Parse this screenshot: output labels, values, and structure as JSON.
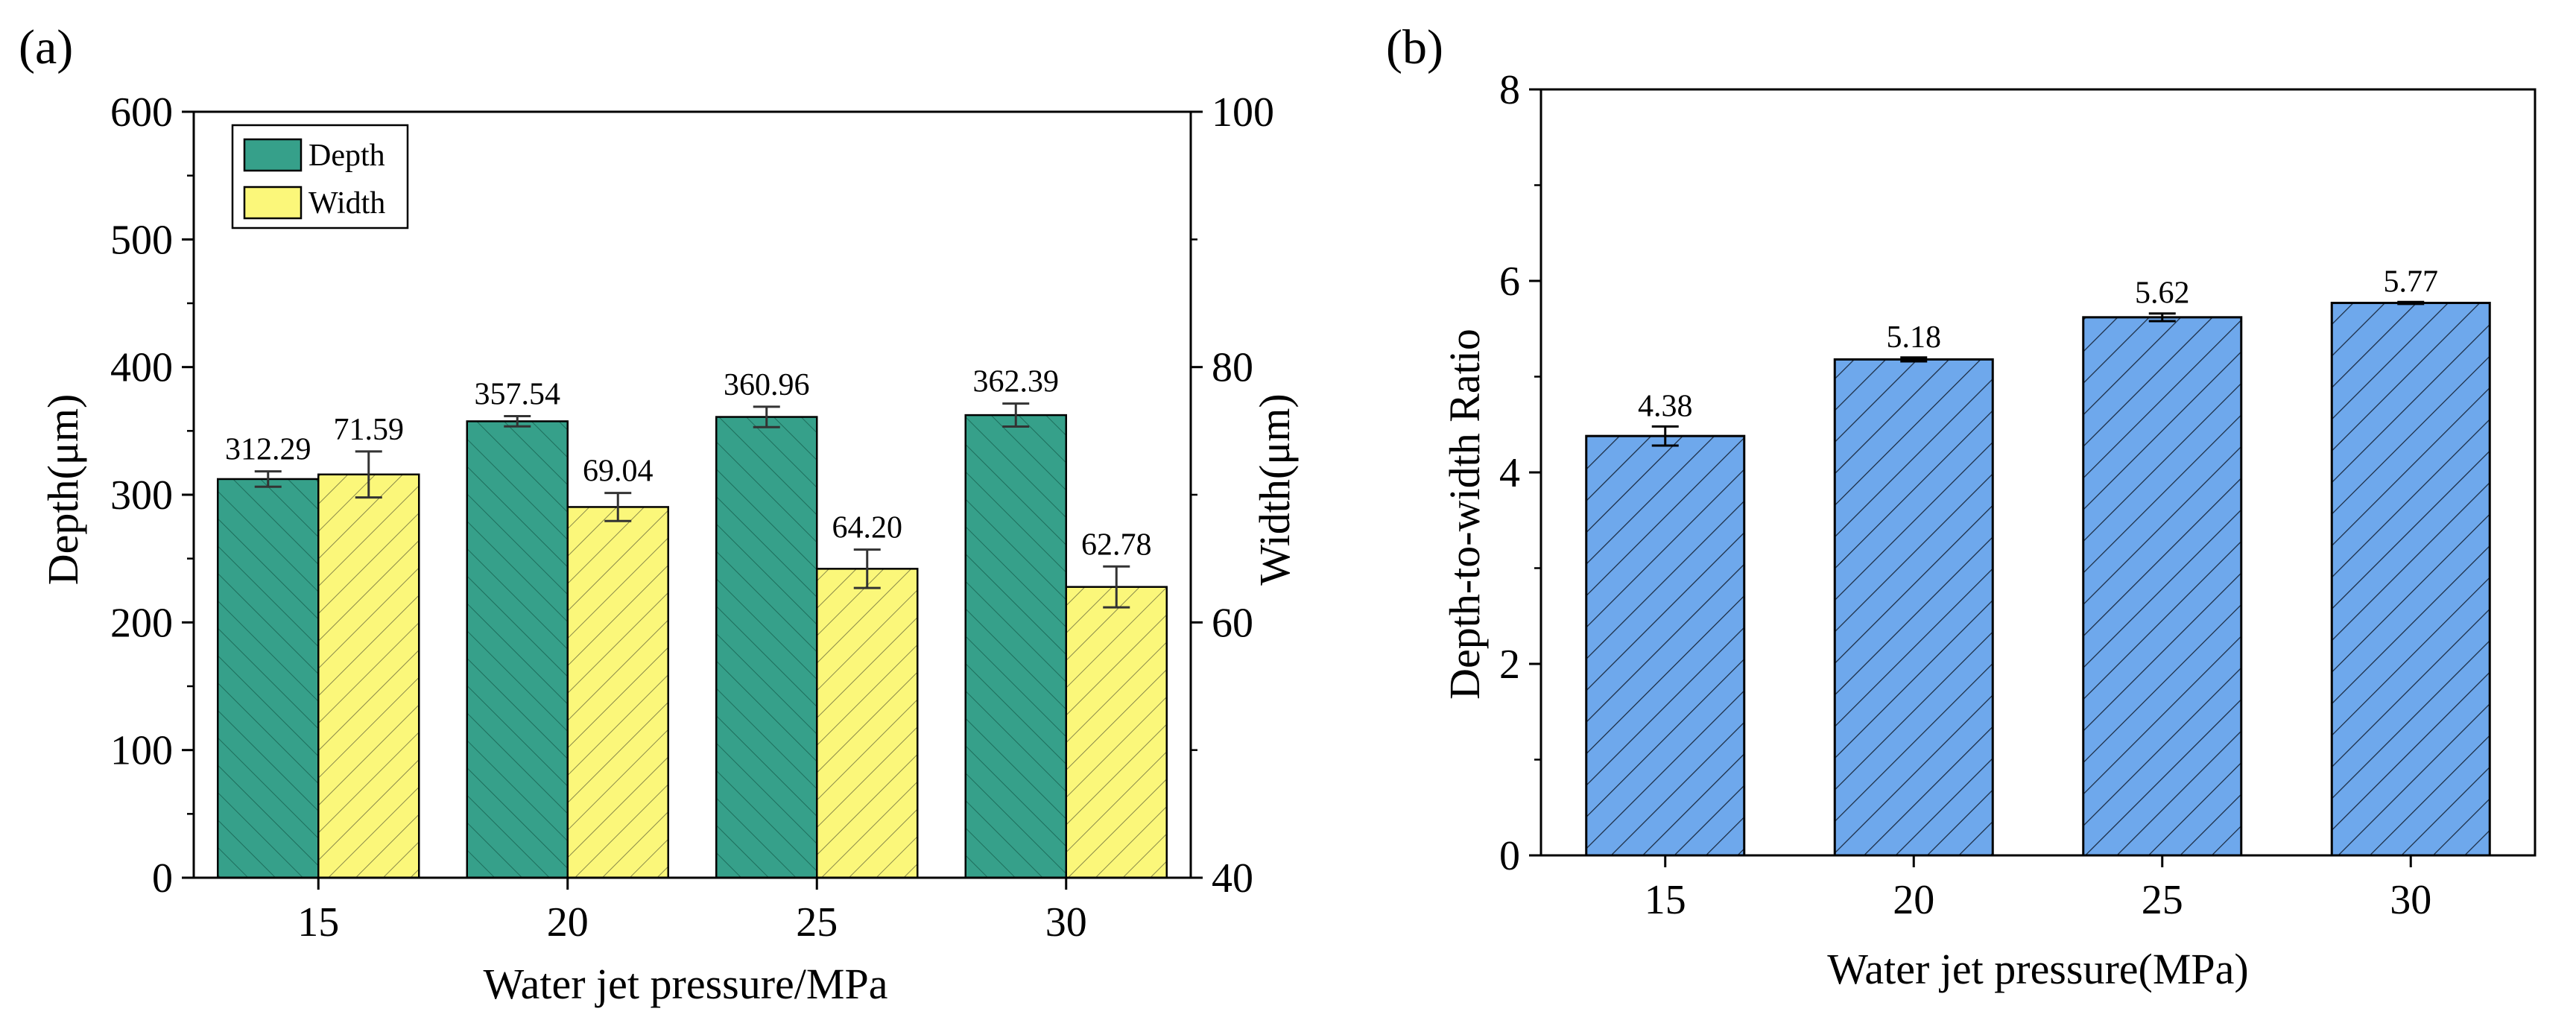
{
  "chart_data": [
    {
      "panel_label": "(a)",
      "type": "bar",
      "categories": [
        "15",
        "20",
        "25",
        "30"
      ],
      "series": [
        {
          "name": "Depth",
          "axis": "left",
          "values": [
            312.29,
            357.54,
            360.96,
            362.39
          ],
          "errors": [
            6,
            4,
            8,
            9
          ],
          "labels": [
            "312.29",
            "357.54",
            "360.96",
            "362.39"
          ],
          "color": "#36a08a",
          "hatch": "backslash"
        },
        {
          "name": "Width",
          "axis": "right",
          "values": [
            71.59,
            69.04,
            64.2,
            62.78
          ],
          "errors": [
            1.8,
            1.1,
            1.5,
            1.6
          ],
          "labels": [
            "71.59",
            "69.04",
            "64.20",
            "62.78"
          ],
          "color": "#fbf77a",
          "hatch": "slash"
        }
      ],
      "xlabel": "Water jet pressure/MPa",
      "ylabel": "Depth(μm)",
      "y2label": "Width(μm)",
      "ylim": [
        0,
        600
      ],
      "y2lim": [
        40,
        100
      ],
      "yticks": [
        "0",
        "100",
        "200",
        "300",
        "400",
        "500",
        "600"
      ],
      "y2ticks": [
        "40",
        "60",
        "80",
        "100"
      ],
      "legend": "top-left",
      "grid": false
    },
    {
      "panel_label": "(b)",
      "type": "bar",
      "categories": [
        "15",
        "20",
        "25",
        "30"
      ],
      "series": [
        {
          "values": [
            4.38,
            5.18,
            5.62,
            5.77
          ],
          "errors": [
            0.1,
            0.02,
            0.04,
            0.01
          ],
          "labels": [
            "4.38",
            "5.18",
            "5.62",
            "5.77"
          ],
          "color": "#6ea8ec",
          "hatch": "slash"
        }
      ],
      "xlabel": "Water jet pressure(MPa)",
      "ylabel": "Depth-to-width Ratio",
      "ylim": [
        0,
        8
      ],
      "yticks": [
        "0",
        "2",
        "4",
        "6",
        "8"
      ],
      "grid": false
    }
  ]
}
